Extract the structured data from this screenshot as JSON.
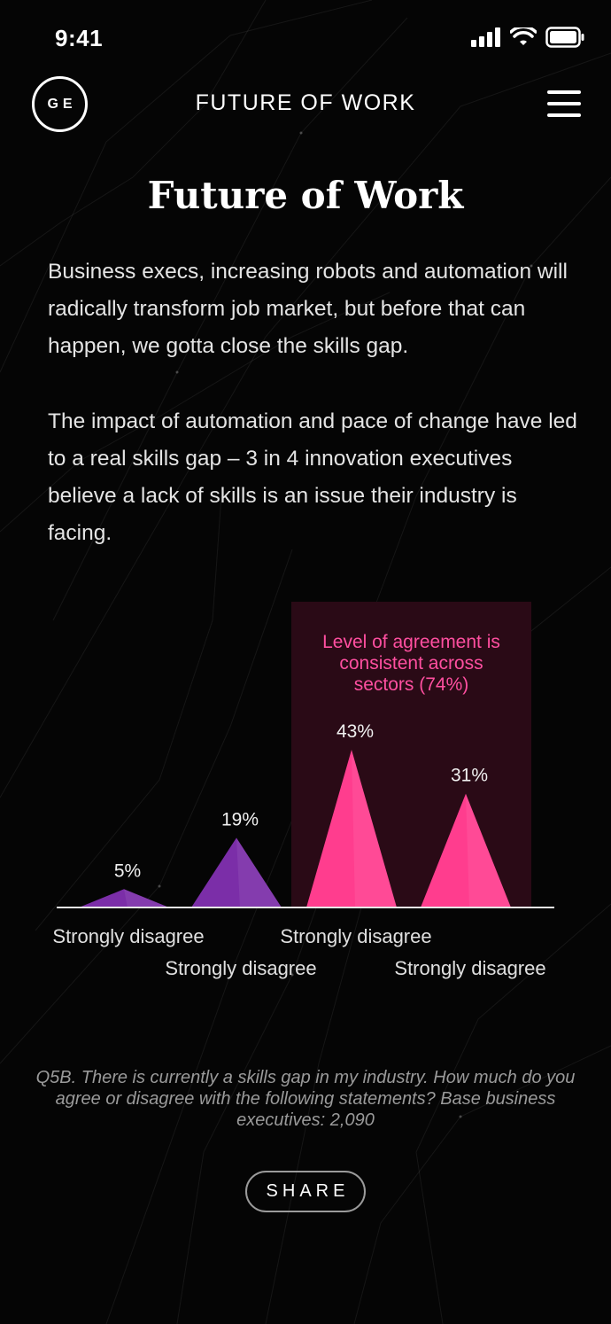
{
  "status_bar": {
    "time": "9:41"
  },
  "nav": {
    "logo_text": "GE",
    "title": "FUTURE OF WORK"
  },
  "page": {
    "title": "Future of Work",
    "paragraphs": [
      "Business execs, increasing robots and automation will radically transform job market, but before that can happen, we gotta close the skills gap.",
      "The impact of automation and pace of change have led to a real skills gap – 3 in 4 innovation executives believe a lack of skills is an issue their industry is facing."
    ]
  },
  "chart_data": {
    "type": "bar",
    "categories": [
      "Strongly disagree",
      "Strongly disagree",
      "Strongly disagree",
      "Strongly disagree"
    ],
    "values": [
      5,
      19,
      43,
      31
    ],
    "value_labels": [
      "5%",
      "19%",
      "43%",
      "31%"
    ],
    "ylim": [
      0,
      43
    ],
    "colors": [
      "#7b2ea8",
      "#7b2ea8",
      "#ff3d8e",
      "#ff3d8e"
    ],
    "highlight": {
      "categories": [
        2,
        3
      ],
      "color": "#2a0a16"
    },
    "annotation": [
      "Level of agreement is",
      "consistent across",
      "sectors (74%)"
    ],
    "title": "",
    "xlabel": "",
    "ylabel": "",
    "grid": false
  },
  "footnote": "Q5B. There is currently a skills gap in my industry. How much do you agree or disagree with the following statements? Base business executives: 2,090",
  "share": {
    "label": "SHARE"
  }
}
